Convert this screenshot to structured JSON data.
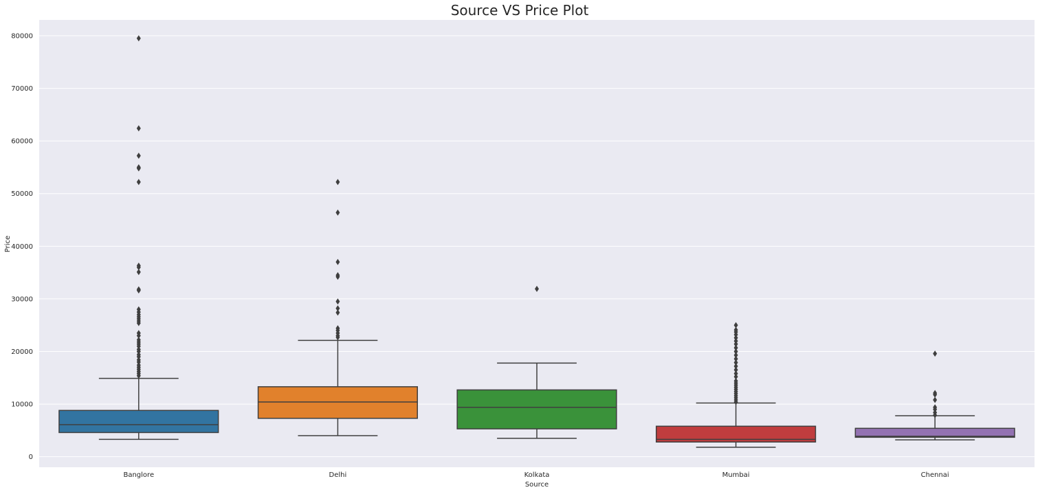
{
  "chart_data": {
    "type": "boxplot",
    "title": "Source VS Price Plot",
    "xlabel": "Source",
    "ylabel": "Price",
    "ylim": [
      -2000,
      83000
    ],
    "yticks": [
      0,
      10000,
      20000,
      30000,
      40000,
      50000,
      60000,
      70000,
      80000
    ],
    "ytick_labels": [
      "0",
      "10000",
      "20000",
      "30000",
      "40000",
      "50000",
      "60000",
      "70000",
      "80000"
    ],
    "grid": true,
    "background": "#eaeaf2",
    "series": [
      {
        "name": "Banglore",
        "color": "#3274a1",
        "q1": 4600,
        "median": 6100,
        "q3": 8800,
        "whisker_low": 3300,
        "whisker_high": 14900,
        "outliers": [
          79500,
          62400,
          57200,
          55000,
          54800,
          52200,
          36300,
          36000,
          35100,
          31800,
          31600,
          28000,
          27500,
          27000,
          26600,
          26200,
          25800,
          25400,
          23500,
          23000,
          22200,
          21800,
          21400,
          21000,
          20400,
          20000,
          19400,
          19000,
          18400,
          18000,
          17400,
          17000,
          16600,
          16200,
          15800,
          15400
        ]
      },
      {
        "name": "Delhi",
        "color": "#e1812c",
        "q1": 7300,
        "median": 10400,
        "q3": 13300,
        "whisker_low": 4000,
        "whisker_high": 22100,
        "outliers": [
          52200,
          46400,
          37000,
          34500,
          34200,
          29500,
          28200,
          27400,
          24400,
          24000,
          23500,
          23000,
          22700
        ]
      },
      {
        "name": "Kolkata",
        "color": "#3a923a",
        "q1": 5300,
        "median": 9400,
        "q3": 12700,
        "whisker_low": 3500,
        "whisker_high": 17800,
        "outliers": [
          31900
        ]
      },
      {
        "name": "Mumbai",
        "color": "#c03d3e",
        "q1": 2800,
        "median": 3300,
        "q3": 5800,
        "whisker_low": 1800,
        "whisker_high": 10200,
        "outliers": [
          25000,
          24100,
          23700,
          23200,
          22600,
          22000,
          21400,
          20700,
          20000,
          19300,
          18600,
          17900,
          17200,
          16500,
          15800,
          15200,
          14400,
          14000,
          13600,
          13200,
          12800,
          12400,
          12000,
          11600,
          11200,
          10800,
          10400
        ]
      },
      {
        "name": "Chennai",
        "color": "#9372b2",
        "q1": 3700,
        "median": 3900,
        "q3": 5400,
        "whisker_low": 3200,
        "whisker_high": 7800,
        "outliers": [
          19600,
          12100,
          11800,
          10800,
          9400,
          9000,
          8400,
          7900
        ]
      }
    ]
  }
}
